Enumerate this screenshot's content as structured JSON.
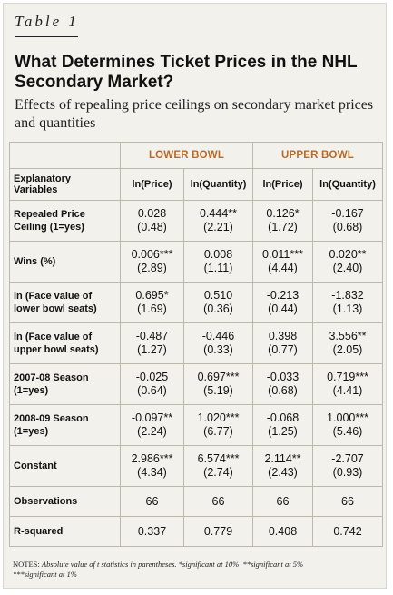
{
  "table_label": "Table 1",
  "title": "What Determines Ticket Prices in the NHL Secondary Market?",
  "subtitle": "Effects of repealing price ceilings on secondary market prices and quantities",
  "groups": {
    "lower": "LOWER BOWL",
    "upper": "UPPER BOWL"
  },
  "columns": {
    "variables": "Explanatory Variables",
    "lower_price": "ln(Price)",
    "lower_qty": "ln(Quantity)",
    "upper_price": "ln(Price)",
    "upper_qty": "ln(Quantity)"
  },
  "rows": [
    {
      "label": "Repealed Price Ceiling (1=yes)",
      "c": [
        {
          "coef": "0.028",
          "se": "(0.48)"
        },
        {
          "coef": "0.444**",
          "se": "(2.21)"
        },
        {
          "coef": "0.126*",
          "se": "(1.72)"
        },
        {
          "coef": "-0.167",
          "se": "(0.68)"
        }
      ]
    },
    {
      "label": "Wins (%)",
      "c": [
        {
          "coef": "0.006***",
          "se": "(2.89)"
        },
        {
          "coef": "0.008",
          "se": "(1.11)"
        },
        {
          "coef": "0.011***",
          "se": "(4.44)"
        },
        {
          "coef": "0.020**",
          "se": "(2.40)"
        }
      ]
    },
    {
      "label": "ln (Face value of lower bowl seats)",
      "c": [
        {
          "coef": "0.695*",
          "se": "(1.69)"
        },
        {
          "coef": "0.510",
          "se": "(0.36)"
        },
        {
          "coef": "-0.213",
          "se": "(0.44)"
        },
        {
          "coef": "-1.832",
          "se": "(1.13)"
        }
      ]
    },
    {
      "label": "ln (Face value of upper bowl seats)",
      "c": [
        {
          "coef": "-0.487",
          "se": "(1.27)"
        },
        {
          "coef": "-0.446",
          "se": "(0.33)"
        },
        {
          "coef": "0.398",
          "se": "(0.77)"
        },
        {
          "coef": "3.556**",
          "se": "(2.05)"
        }
      ]
    },
    {
      "label": "2007-08 Season (1=yes)",
      "c": [
        {
          "coef": "-0.025",
          "se": "(0.64)"
        },
        {
          "coef": "0.697***",
          "se": "(5.19)"
        },
        {
          "coef": "-0.033",
          "se": "(0.68)"
        },
        {
          "coef": "0.719***",
          "se": "(4.41)"
        }
      ]
    },
    {
      "label": "2008-09 Season (1=yes)",
      "c": [
        {
          "coef": "-0.097**",
          "se": "(2.24)"
        },
        {
          "coef": "1.020***",
          "se": "(6.77)"
        },
        {
          "coef": "-0.068",
          "se": "(1.25)"
        },
        {
          "coef": "1.000***",
          "se": "(5.46)"
        }
      ]
    },
    {
      "label": "Constant",
      "c": [
        {
          "coef": "2.986***",
          "se": "(4.34)"
        },
        {
          "coef": "6.574***",
          "se": "(2.74)"
        },
        {
          "coef": "2.114**",
          "se": "(2.43)"
        },
        {
          "coef": "-2.707",
          "se": "(0.93)"
        }
      ]
    }
  ],
  "observations": {
    "label": "Observations",
    "values": [
      "66",
      "66",
      "66",
      "66"
    ]
  },
  "rsquared": {
    "label": "R-squared",
    "values": [
      "0.337",
      "0.779",
      "0.408",
      "0.742"
    ]
  },
  "notes": {
    "prefix": "NOTES:",
    "text": "Absolute value of t statistics in parentheses.",
    "sig10": "*significant at 10%",
    "sig5": "**significant at 5%",
    "sig1": "***significant at 1%"
  }
}
